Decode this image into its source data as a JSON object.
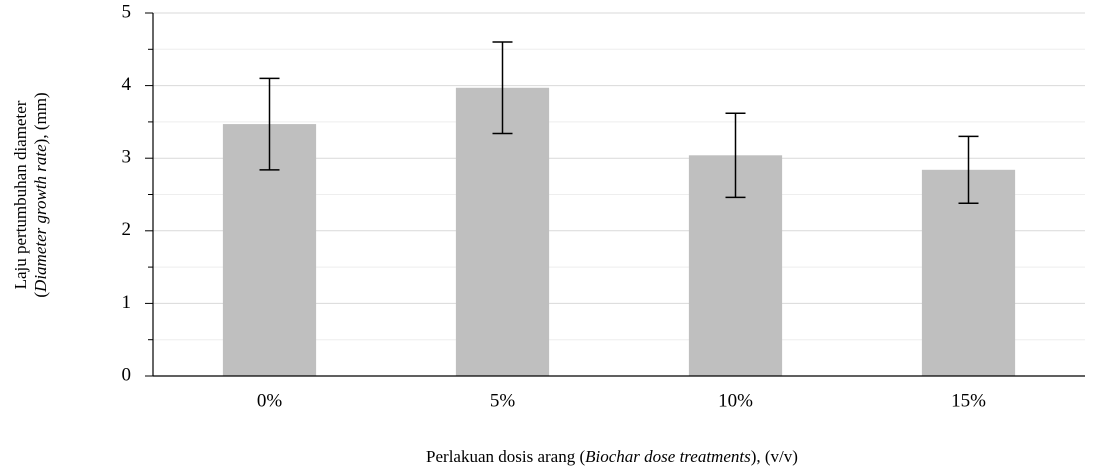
{
  "chart_data": {
    "type": "bar",
    "categories": [
      "0%",
      "5%",
      "10%",
      "15%"
    ],
    "values": [
      3.47,
      3.97,
      3.04,
      2.84
    ],
    "errors": [
      0.63,
      0.63,
      0.58,
      0.46
    ],
    "color": "#bfbfbf",
    "ylim": [
      0,
      5
    ],
    "yticks": [
      0,
      1,
      2,
      3,
      4,
      5
    ],
    "yminorticks": [
      0.5,
      1.5,
      2.5,
      3.5,
      4.5
    ],
    "grid": true,
    "ylabel": [
      [
        "Laju pertumbuhan diameter"
      ],
      [
        "(",
        "Diameter growth rate",
        "), (mm)"
      ]
    ],
    "xlabel": [
      "Perlakuan dosis arang (",
      "Biochar dose treatments",
      "), (v/v)"
    ]
  }
}
